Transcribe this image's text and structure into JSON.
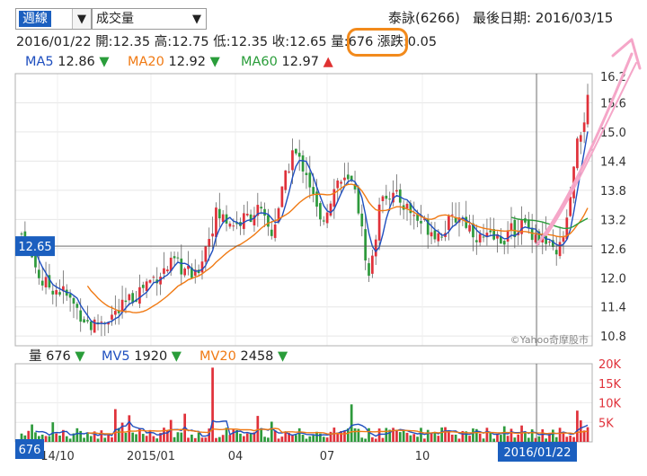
{
  "controls": {
    "period_value": "週線",
    "indicator_value": "成交量"
  },
  "header": {
    "stock": "泰詠(6266)",
    "last_date_label": "最後日期: 2016/03/15"
  },
  "ohlc": {
    "date": "2016/01/22",
    "open": "開:12.35",
    "high": "高:12.75",
    "low": "低:12.35",
    "close": "收:12.65",
    "volume": "量:676",
    "change": "漲跌:0.05"
  },
  "ma_legend": [
    {
      "label": "MA5",
      "value": "12.86",
      "arrow": "▼",
      "color": "#1f4fbf",
      "arrow_color": "#2a9d3a"
    },
    {
      "label": "MA20",
      "value": "12.92",
      "arrow": "▼",
      "color": "#f07a14",
      "arrow_color": "#2a9d3a"
    },
    {
      "label": "MA60",
      "value": "12.97",
      "arrow": "▲",
      "color": "#2a9d3a",
      "arrow_color": "#e03131"
    }
  ],
  "vol_legend": [
    {
      "label": "量",
      "value": "676",
      "arrow": "▼",
      "color": "#222222",
      "arrow_color": "#2a9d3a"
    },
    {
      "label": "MV5",
      "value": "1920",
      "arrow": "▼",
      "color": "#1f4fbf",
      "arrow_color": "#2a9d3a"
    },
    {
      "label": "MV20",
      "value": "2458",
      "arrow": "▼",
      "color": "#f07a14",
      "arrow_color": "#2a9d3a"
    }
  ],
  "watermark": "©Yahoo奇摩股市",
  "colors": {
    "up": "#e0313a",
    "down": "#2e9a3c",
    "ma5": "#1f4fbf",
    "ma20": "#f07a14",
    "ma60": "#2a9d3a",
    "highlight": "#f28a1c",
    "annotation_arrow": "#f5a6c8",
    "cursor_badge": "#1b5fbf"
  },
  "chart_data": {
    "type": "candlestick",
    "price_axis": {
      "ticks": [
        10.8,
        11.4,
        12.0,
        12.6,
        13.2,
        13.8,
        14.4,
        15.0,
        15.6,
        16.2
      ],
      "ylim": [
        10.6,
        16.2
      ]
    },
    "volume_axis": {
      "ticks": [
        "5K",
        "10K",
        "15K",
        "20K"
      ],
      "ylim": [
        0,
        20000
      ]
    },
    "x_ticks": [
      "14/10",
      "2015/01",
      "04",
      "07",
      "10",
      "2016/01"
    ],
    "cursor": {
      "price_label": "12.65",
      "volume_label": "676",
      "date_label": "2016/01/22",
      "price": 12.65
    },
    "series_names": [
      "MA5",
      "MA20",
      "MA60",
      "MV5",
      "MV20"
    ]
  }
}
